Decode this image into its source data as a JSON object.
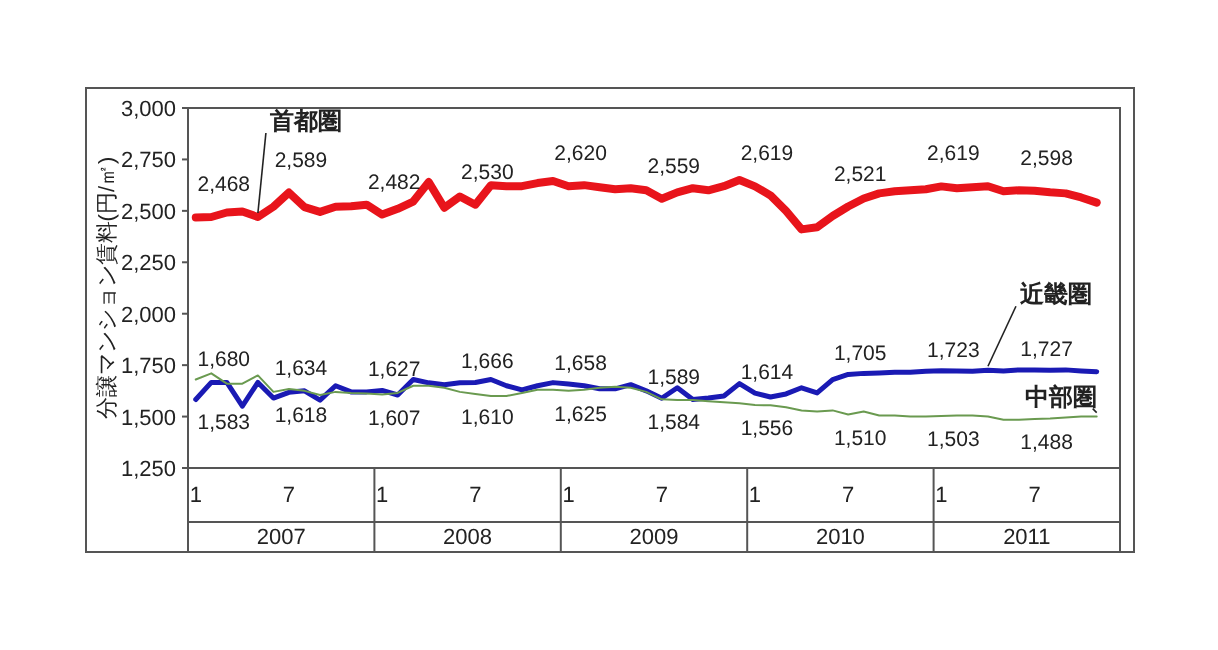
{
  "chart_data": {
    "type": "line",
    "ylabel": "分譲マンション賃料(円/㎡)",
    "categories": [
      "1",
      null,
      null,
      null,
      null,
      null,
      "7",
      null,
      null,
      null,
      null,
      null,
      "1",
      null,
      null,
      null,
      null,
      null,
      "7",
      null,
      null,
      null,
      null,
      null,
      "1",
      null,
      null,
      null,
      null,
      null,
      "7",
      null,
      null,
      null,
      null,
      null,
      "1",
      null,
      null,
      null,
      null,
      null,
      "7",
      null,
      null,
      null,
      null,
      null,
      "1",
      null,
      null,
      null,
      null,
      null,
      "7",
      null,
      null,
      null,
      null,
      null
    ],
    "ylim": [
      1250,
      3000
    ],
    "yticks": [
      {
        "value": 1250,
        "label": "1,250"
      },
      {
        "value": 1500,
        "label": "1,500"
      },
      {
        "value": 1750,
        "label": "1,750"
      },
      {
        "value": 2000,
        "label": "2,000"
      },
      {
        "value": 2250,
        "label": "2,250"
      },
      {
        "value": 2500,
        "label": "2,500"
      },
      {
        "value": 2750,
        "label": "2,750"
      },
      {
        "value": 3000,
        "label": "3,000"
      }
    ],
    "grid": false,
    "legend": false,
    "marker": "none",
    "line_style": "solid",
    "series": [
      {
        "name": "首都圏",
        "color": "#e8141b",
        "values": [
          2468,
          2470,
          2492,
          2497,
          2470,
          2520,
          2589,
          2518,
          2495,
          2520,
          2522,
          2530,
          2482,
          2510,
          2545,
          2640,
          2515,
          2570,
          2530,
          2625,
          2620,
          2620,
          2635,
          2645,
          2620,
          2625,
          2615,
          2605,
          2610,
          2600,
          2559,
          2590,
          2610,
          2600,
          2620,
          2650,
          2619,
          2575,
          2500,
          2410,
          2420,
          2475,
          2521,
          2560,
          2585,
          2595,
          2600,
          2605,
          2619,
          2610,
          2615,
          2620,
          2595,
          2600,
          2598,
          2590,
          2585,
          2565,
          2540,
          null
        ],
        "value_labels": [
          "2,468",
          null,
          null,
          null,
          null,
          null,
          "2,589",
          null,
          null,
          null,
          null,
          null,
          "2,482",
          null,
          null,
          null,
          null,
          null,
          "2,530",
          null,
          null,
          null,
          null,
          null,
          "2,620",
          null,
          null,
          null,
          null,
          null,
          "2,559",
          null,
          null,
          null,
          null,
          null,
          "2,619",
          null,
          null,
          null,
          null,
          null,
          "2,521",
          null,
          null,
          null,
          null,
          null,
          "2,619",
          null,
          null,
          null,
          null,
          null,
          "2,598",
          null,
          null,
          null,
          null,
          null
        ]
      },
      {
        "name": "近畿圏",
        "color": "#1a1ab4",
        "values": [
          1583,
          1666,
          1666,
          1551,
          1666,
          1590,
          1618,
          1625,
          1580,
          1650,
          1620,
          1620,
          1627,
          1605,
          1680,
          1664,
          1655,
          1664,
          1666,
          1680,
          1650,
          1630,
          1650,
          1665,
          1658,
          1650,
          1635,
          1635,
          1655,
          1625,
          1589,
          1640,
          1583,
          1590,
          1600,
          1660,
          1614,
          1595,
          1610,
          1640,
          1615,
          1680,
          1705,
          1710,
          1712,
          1715,
          1715,
          1720,
          1723,
          1722,
          1720,
          1725,
          1722,
          1727,
          1727,
          1725,
          1727,
          1722,
          1718,
          null
        ],
        "value_labels": [
          "1,583",
          null,
          null,
          null,
          null,
          null,
          "1,618",
          null,
          null,
          null,
          null,
          null,
          "1,627",
          null,
          null,
          null,
          null,
          null,
          "1,666",
          null,
          null,
          null,
          null,
          null,
          "1,658",
          null,
          null,
          null,
          null,
          null,
          "1,589",
          null,
          null,
          null,
          null,
          null,
          "1,614",
          null,
          null,
          null,
          null,
          null,
          "1,705",
          null,
          null,
          null,
          null,
          null,
          "1,723",
          null,
          null,
          null,
          null,
          null,
          "1,727",
          null,
          null,
          null,
          null,
          null
        ]
      },
      {
        "name": "中部圏",
        "color": "#6a9a50",
        "values": [
          1680,
          1710,
          1660,
          1660,
          1700,
          1620,
          1634,
          1625,
          1605,
          1620,
          1615,
          1612,
          1607,
          1615,
          1650,
          1650,
          1640,
          1620,
          1610,
          1600,
          1600,
          1615,
          1630,
          1630,
          1625,
          1630,
          1640,
          1645,
          1640,
          1620,
          1584,
          1580,
          1580,
          1575,
          1570,
          1565,
          1556,
          1555,
          1545,
          1530,
          1525,
          1530,
          1510,
          1525,
          1505,
          1505,
          1500,
          1500,
          1503,
          1505,
          1505,
          1500,
          1485,
          1485,
          1488,
          1490,
          1495,
          1500,
          1500,
          null
        ],
        "value_labels": [
          "1,680",
          null,
          null,
          null,
          null,
          null,
          "1,634",
          null,
          null,
          null,
          null,
          null,
          "1,607",
          null,
          null,
          null,
          null,
          null,
          "1,610",
          null,
          null,
          null,
          null,
          null,
          "1,625",
          null,
          null,
          null,
          null,
          null,
          "1,584",
          null,
          null,
          null,
          null,
          null,
          "1,556",
          null,
          null,
          null,
          null,
          null,
          "1,510",
          null,
          null,
          null,
          null,
          null,
          "1,503",
          null,
          null,
          null,
          null,
          null,
          "1,488",
          null,
          null,
          null,
          null,
          null
        ]
      }
    ],
    "annotations": [
      "2007",
      "2008",
      "2009",
      "2010",
      "2011"
    ]
  }
}
